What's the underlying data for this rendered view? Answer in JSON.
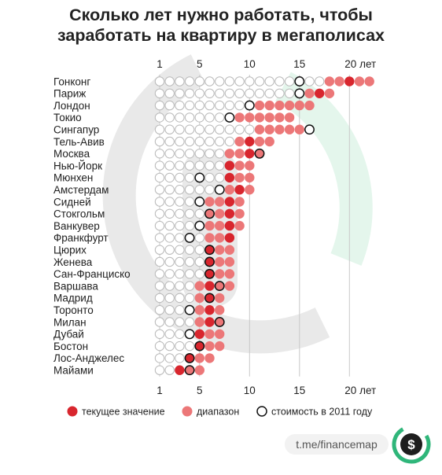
{
  "title_lines": [
    "Сколько лет нужно работать, чтобы",
    "заработать на квартиру в мегаполисах"
  ],
  "chart_data": {
    "type": "dot-range",
    "title": "Сколько лет нужно работать, чтобы заработать на квартиру в мегаполисах",
    "x_ticks": [
      {
        "value": 1,
        "label": "1"
      },
      {
        "value": 5,
        "label": "5"
      },
      {
        "value": 10,
        "label": "10"
      },
      {
        "value": 15,
        "label": "15"
      },
      {
        "value": 20,
        "label": "20 лет"
      }
    ],
    "x_range": [
      1,
      22
    ],
    "cities": [
      {
        "name": "Гонконг",
        "range": [
          18,
          22
        ],
        "current": 20,
        "y2011": 15
      },
      {
        "name": "Париж",
        "range": [
          16,
          18
        ],
        "current": 17,
        "y2011": 15
      },
      {
        "name": "Лондон",
        "range": [
          11,
          16
        ],
        "current": null,
        "y2011": 10
      },
      {
        "name": "Токио",
        "range": [
          9,
          14
        ],
        "current": null,
        "y2011": 8
      },
      {
        "name": "Сингапур",
        "range": [
          11,
          15
        ],
        "current": null,
        "y2011": 16
      },
      {
        "name": "Тель-Авив",
        "range": [
          9,
          12
        ],
        "current": 10,
        "y2011": null
      },
      {
        "name": "Москва",
        "range": [
          8,
          11
        ],
        "current": 10,
        "y2011": 11
      },
      {
        "name": "Нью-Йорк",
        "range": [
          8,
          10
        ],
        "current": 8,
        "y2011": null
      },
      {
        "name": "Мюнхен",
        "range": [
          8,
          10
        ],
        "current": 8,
        "y2011": 5
      },
      {
        "name": "Амстердам",
        "range": [
          8,
          10
        ],
        "current": 9,
        "y2011": 7
      },
      {
        "name": "Сидней",
        "range": [
          6,
          9
        ],
        "current": 8,
        "y2011": 5
      },
      {
        "name": "Стокгольм",
        "range": [
          6,
          9
        ],
        "current": 8,
        "y2011": 6
      },
      {
        "name": "Ванкувер",
        "range": [
          6,
          9
        ],
        "current": 8,
        "y2011": 5
      },
      {
        "name": "Франкфурт",
        "range": [
          6,
          8
        ],
        "current": 8,
        "y2011": 4
      },
      {
        "name": "Цюрих",
        "range": [
          6,
          8
        ],
        "current": 6,
        "y2011": 6
      },
      {
        "name": "Женева",
        "range": [
          6,
          8
        ],
        "current": 6,
        "y2011": 6
      },
      {
        "name": "Сан-Франциско",
        "range": [
          6,
          8
        ],
        "current": 6,
        "y2011": 6
      },
      {
        "name": "Варшава",
        "range": [
          5,
          8
        ],
        "current": 6,
        "y2011": 7
      },
      {
        "name": "Мадрид",
        "range": [
          5,
          7
        ],
        "current": 6,
        "y2011": 6
      },
      {
        "name": "Торонто",
        "range": [
          5,
          7
        ],
        "current": 6,
        "y2011": 4
      },
      {
        "name": "Милан",
        "range": [
          5,
          7
        ],
        "current": 6,
        "y2011": 7
      },
      {
        "name": "Дубай",
        "range": [
          5,
          7
        ],
        "current": 5,
        "y2011": 4
      },
      {
        "name": "Бостон",
        "range": [
          5,
          7
        ],
        "current": 5,
        "y2011": 5
      },
      {
        "name": "Лос-Анджелес",
        "range": [
          4,
          6
        ],
        "current": 4,
        "y2011": 4
      },
      {
        "name": "Майами",
        "range": [
          3,
          5
        ],
        "current": 3,
        "y2011": 4
      }
    ],
    "legend": [
      {
        "key": "current",
        "label": "текущее значение"
      },
      {
        "key": "range",
        "label": "диапазон"
      },
      {
        "key": "y2011",
        "label": "стоимость в 2011 году"
      }
    ],
    "legend_placement": "bottom"
  },
  "colors": {
    "current": "#d8262e",
    "range": "#ec7778",
    "empty_fill": "#ffffff",
    "empty_stroke": "#b9b9b9",
    "outline_2011": "#111111",
    "gridline": "#c8c8c8",
    "watermark_gray": "#e9e9e9",
    "watermark_green": "#e4f6ec"
  },
  "brand": {
    "handle": "t.me/financemap",
    "logo_icon": "dollar-circle-icon"
  }
}
